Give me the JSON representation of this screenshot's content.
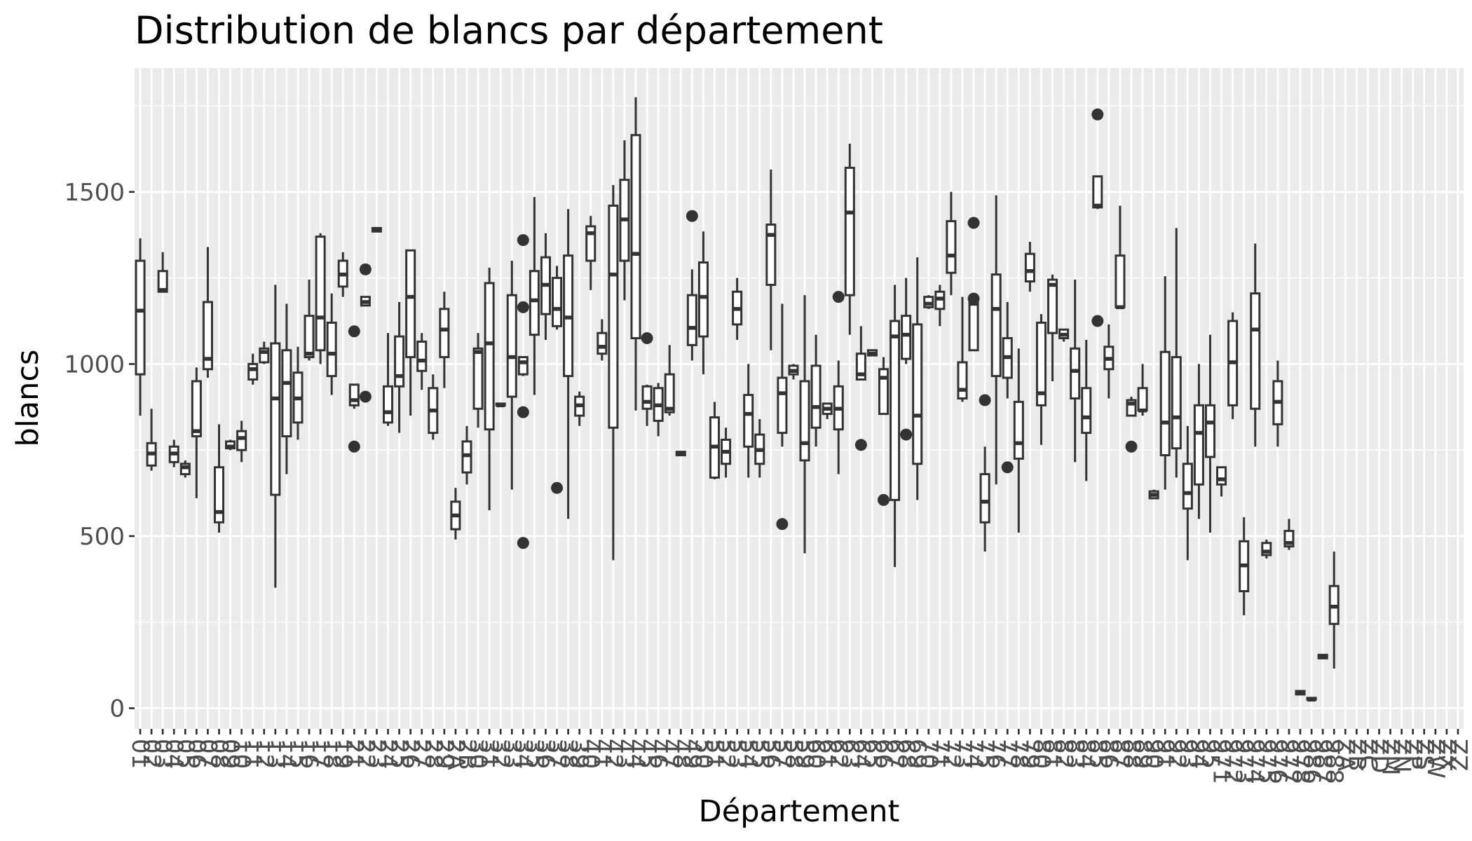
{
  "chart_data": {
    "type": "boxplot",
    "title": "Distribution de blancs par département",
    "xlabel": "Département",
    "ylabel": "blancs",
    "ylim": [
      -60,
      1860
    ],
    "y_ticks": [
      0,
      500,
      1000,
      1500
    ],
    "grid": true,
    "legend": "none",
    "colors": {
      "panel": "#ebebeb",
      "grid": "#ffffff",
      "box_fill": "#ffffff",
      "stroke": "#333333"
    },
    "categories": [
      "01",
      "02",
      "03",
      "04",
      "05",
      "06",
      "07",
      "08",
      "09",
      "10",
      "11",
      "12",
      "13",
      "14",
      "15",
      "16",
      "17",
      "18",
      "19",
      "21",
      "22",
      "23",
      "24",
      "25",
      "26",
      "27",
      "28",
      "29",
      "2A",
      "2B",
      "30",
      "31",
      "32",
      "33",
      "34",
      "35",
      "36",
      "37",
      "38",
      "39",
      "40",
      "41",
      "42",
      "43",
      "44",
      "45",
      "46",
      "47",
      "48",
      "49",
      "50",
      "51",
      "52",
      "53",
      "54",
      "55",
      "56",
      "57",
      "58",
      "59",
      "60",
      "61",
      "62",
      "63",
      "64",
      "65",
      "66",
      "67",
      "68",
      "69",
      "70",
      "71",
      "72",
      "73",
      "74",
      "75",
      "76",
      "77",
      "78",
      "79",
      "80",
      "81",
      "82",
      "83",
      "84",
      "85",
      "86",
      "87",
      "88",
      "89",
      "90",
      "91",
      "92",
      "93",
      "94",
      "95",
      "971",
      "972",
      "973",
      "974",
      "975",
      "976",
      "977",
      "978",
      "986",
      "987",
      "988",
      "ZA",
      "ZB",
      "ZC",
      "ZD",
      "ZM",
      "ZN",
      "ZP",
      "ZS",
      "ZW",
      "ZX",
      "ZZ"
    ],
    "boxes": [
      {
        "cat": "01",
        "min": 850,
        "q1": 970,
        "median": 1155,
        "q3": 1300,
        "max": 1365,
        "outliers": []
      },
      {
        "cat": "02",
        "min": 690,
        "q1": 705,
        "median": 740,
        "q3": 770,
        "max": 870,
        "outliers": []
      },
      {
        "cat": "03",
        "min": 1210,
        "q1": 1210,
        "median": 1215,
        "q3": 1270,
        "max": 1325,
        "outliers": []
      },
      {
        "cat": "04",
        "min": 700,
        "q1": 715,
        "median": 740,
        "q3": 760,
        "max": 780,
        "outliers": []
      },
      {
        "cat": "05",
        "min": 670,
        "q1": 680,
        "median": 700,
        "q3": 710,
        "max": 720,
        "outliers": []
      },
      {
        "cat": "06",
        "min": 610,
        "q1": 790,
        "median": 805,
        "q3": 950,
        "max": 990,
        "outliers": []
      },
      {
        "cat": "07",
        "min": 960,
        "q1": 985,
        "median": 1015,
        "q3": 1180,
        "max": 1340,
        "outliers": []
      },
      {
        "cat": "08",
        "min": 510,
        "q1": 540,
        "median": 570,
        "q3": 700,
        "max": 825,
        "outliers": []
      },
      {
        "cat": "09",
        "min": 750,
        "q1": 755,
        "median": 760,
        "q3": 775,
        "max": 780,
        "outliers": []
      },
      {
        "cat": "10",
        "min": 715,
        "q1": 750,
        "median": 785,
        "q3": 805,
        "max": 835,
        "outliers": []
      },
      {
        "cat": "11",
        "min": 940,
        "q1": 955,
        "median": 985,
        "q3": 1000,
        "max": 1030,
        "outliers": []
      },
      {
        "cat": "12",
        "min": 1000,
        "q1": 1005,
        "median": 1035,
        "q3": 1045,
        "max": 1065,
        "outliers": []
      },
      {
        "cat": "13",
        "min": 350,
        "q1": 620,
        "median": 900,
        "q3": 1060,
        "max": 1230,
        "outliers": []
      },
      {
        "cat": "14",
        "min": 680,
        "q1": 790,
        "median": 945,
        "q3": 1040,
        "max": 1175,
        "outliers": []
      },
      {
        "cat": "15",
        "min": 780,
        "q1": 830,
        "median": 900,
        "q3": 975,
        "max": 1050,
        "outliers": []
      },
      {
        "cat": "16",
        "min": 1010,
        "q1": 1020,
        "median": 1030,
        "q3": 1140,
        "max": 1245,
        "outliers": []
      },
      {
        "cat": "17",
        "min": 1000,
        "q1": 1040,
        "median": 1135,
        "q3": 1370,
        "max": 1380,
        "outliers": []
      },
      {
        "cat": "18",
        "min": 910,
        "q1": 965,
        "median": 1030,
        "q3": 1120,
        "max": 1205,
        "outliers": []
      },
      {
        "cat": "19",
        "min": 1195,
        "q1": 1225,
        "median": 1260,
        "q3": 1300,
        "max": 1325,
        "outliers": []
      },
      {
        "cat": "21",
        "min": 870,
        "q1": 880,
        "median": 895,
        "q3": 940,
        "max": 940,
        "outliers": [
          1095,
          760
        ]
      },
      {
        "cat": "22",
        "min": 1170,
        "q1": 1170,
        "median": 1180,
        "q3": 1195,
        "max": 1195,
        "outliers": [
          1275,
          905
        ]
      },
      {
        "cat": "23",
        "min": 1385,
        "q1": 1385,
        "median": 1390,
        "q3": 1395,
        "max": 1395,
        "outliers": []
      },
      {
        "cat": "24",
        "min": 820,
        "q1": 830,
        "median": 860,
        "q3": 935,
        "max": 1090,
        "outliers": []
      },
      {
        "cat": "25",
        "min": 800,
        "q1": 935,
        "median": 965,
        "q3": 1080,
        "max": 1180,
        "outliers": []
      },
      {
        "cat": "26",
        "min": 850,
        "q1": 1020,
        "median": 1195,
        "q3": 1330,
        "max": 1330,
        "outliers": []
      },
      {
        "cat": "27",
        "min": 925,
        "q1": 980,
        "median": 1010,
        "q3": 1065,
        "max": 1090,
        "outliers": []
      },
      {
        "cat": "28",
        "min": 780,
        "q1": 800,
        "median": 865,
        "q3": 930,
        "max": 970,
        "outliers": []
      },
      {
        "cat": "29",
        "min": 930,
        "q1": 1020,
        "median": 1100,
        "q3": 1160,
        "max": 1210,
        "outliers": []
      },
      {
        "cat": "2A",
        "min": 490,
        "q1": 520,
        "median": 560,
        "q3": 600,
        "max": 640,
        "outliers": []
      },
      {
        "cat": "2B",
        "min": 650,
        "q1": 685,
        "median": 735,
        "q3": 775,
        "max": 820,
        "outliers": []
      },
      {
        "cat": "30",
        "min": 815,
        "q1": 870,
        "median": 1035,
        "q3": 1045,
        "max": 1090,
        "outliers": []
      },
      {
        "cat": "31",
        "min": 575,
        "q1": 810,
        "median": 1060,
        "q3": 1235,
        "max": 1280,
        "outliers": []
      },
      {
        "cat": "32",
        "min": 880,
        "q1": 880,
        "median": 880,
        "q3": 885,
        "max": 885,
        "outliers": []
      },
      {
        "cat": "33",
        "min": 635,
        "q1": 905,
        "median": 1020,
        "q3": 1200,
        "max": 1300,
        "outliers": []
      },
      {
        "cat": "34",
        "min": 965,
        "q1": 970,
        "median": 1005,
        "q3": 1020,
        "max": 1020,
        "outliers": [
          1360,
          1165,
          860,
          480
        ]
      },
      {
        "cat": "35",
        "min": 910,
        "q1": 1085,
        "median": 1185,
        "q3": 1270,
        "max": 1485,
        "outliers": []
      },
      {
        "cat": "36",
        "min": 1070,
        "q1": 1145,
        "median": 1230,
        "q3": 1310,
        "max": 1380,
        "outliers": []
      },
      {
        "cat": "37",
        "min": 1100,
        "q1": 1110,
        "median": 1160,
        "q3": 1250,
        "max": 1285,
        "outliers": [
          640
        ]
      },
      {
        "cat": "38",
        "min": 550,
        "q1": 965,
        "median": 1135,
        "q3": 1315,
        "max": 1450,
        "outliers": []
      },
      {
        "cat": "39",
        "min": 820,
        "q1": 850,
        "median": 880,
        "q3": 905,
        "max": 920,
        "outliers": []
      },
      {
        "cat": "40",
        "min": 1215,
        "q1": 1300,
        "median": 1380,
        "q3": 1400,
        "max": 1430,
        "outliers": []
      },
      {
        "cat": "41",
        "min": 1010,
        "q1": 1030,
        "median": 1050,
        "q3": 1090,
        "max": 1130,
        "outliers": []
      },
      {
        "cat": "42",
        "min": 430,
        "q1": 815,
        "median": 1260,
        "q3": 1460,
        "max": 1520,
        "outliers": []
      },
      {
        "cat": "43",
        "min": 1185,
        "q1": 1300,
        "median": 1420,
        "q3": 1535,
        "max": 1650,
        "outliers": []
      },
      {
        "cat": "44",
        "min": 865,
        "q1": 1075,
        "median": 1320,
        "q3": 1665,
        "max": 1775,
        "outliers": []
      },
      {
        "cat": "45",
        "min": 820,
        "q1": 870,
        "median": 890,
        "q3": 935,
        "max": 940,
        "outliers": [
          1075
        ]
      },
      {
        "cat": "46",
        "min": 790,
        "q1": 835,
        "median": 880,
        "q3": 930,
        "max": 945,
        "outliers": []
      },
      {
        "cat": "47",
        "min": 850,
        "q1": 860,
        "median": 870,
        "q3": 970,
        "max": 1055,
        "outliers": []
      },
      {
        "cat": "48",
        "min": 735,
        "q1": 735,
        "median": 740,
        "q3": 745,
        "max": 745,
        "outliers": []
      },
      {
        "cat": "49",
        "min": 1010,
        "q1": 1055,
        "median": 1105,
        "q3": 1200,
        "max": 1275,
        "outliers": [
          1430
        ]
      },
      {
        "cat": "50",
        "min": 970,
        "q1": 1080,
        "median": 1195,
        "q3": 1295,
        "max": 1385,
        "outliers": []
      },
      {
        "cat": "51",
        "min": 665,
        "q1": 670,
        "median": 760,
        "q3": 845,
        "max": 890,
        "outliers": []
      },
      {
        "cat": "52",
        "min": 670,
        "q1": 710,
        "median": 745,
        "q3": 780,
        "max": 815,
        "outliers": []
      },
      {
        "cat": "53",
        "min": 1070,
        "q1": 1115,
        "median": 1160,
        "q3": 1210,
        "max": 1250,
        "outliers": []
      },
      {
        "cat": "54",
        "min": 670,
        "q1": 760,
        "median": 855,
        "q3": 910,
        "max": 1000,
        "outliers": []
      },
      {
        "cat": "55",
        "min": 670,
        "q1": 710,
        "median": 750,
        "q3": 795,
        "max": 840,
        "outliers": []
      },
      {
        "cat": "56",
        "min": 1040,
        "q1": 1230,
        "median": 1375,
        "q3": 1405,
        "max": 1565,
        "outliers": []
      },
      {
        "cat": "57",
        "min": 760,
        "q1": 800,
        "median": 915,
        "q3": 960,
        "max": 1175,
        "outliers": [
          535
        ]
      },
      {
        "cat": "58",
        "min": 955,
        "q1": 970,
        "median": 980,
        "q3": 995,
        "max": 1000,
        "outliers": []
      },
      {
        "cat": "59",
        "min": 450,
        "q1": 720,
        "median": 770,
        "q3": 950,
        "max": 1200,
        "outliers": []
      },
      {
        "cat": "60",
        "min": 760,
        "q1": 815,
        "median": 875,
        "q3": 995,
        "max": 1085,
        "outliers": []
      },
      {
        "cat": "61",
        "min": 840,
        "q1": 855,
        "median": 870,
        "q3": 885,
        "max": 885,
        "outliers": []
      },
      {
        "cat": "62",
        "min": 680,
        "q1": 810,
        "median": 870,
        "q3": 935,
        "max": 1010,
        "outliers": [
          1195
        ]
      },
      {
        "cat": "63",
        "min": 1085,
        "q1": 1200,
        "median": 1440,
        "q3": 1570,
        "max": 1640,
        "outliers": []
      },
      {
        "cat": "64",
        "min": 955,
        "q1": 955,
        "median": 970,
        "q3": 1030,
        "max": 1110,
        "outliers": [
          765
        ]
      },
      {
        "cat": "65",
        "min": 1025,
        "q1": 1025,
        "median": 1030,
        "q3": 1040,
        "max": 1040,
        "outliers": []
      },
      {
        "cat": "66",
        "min": 855,
        "q1": 855,
        "median": 960,
        "q3": 985,
        "max": 1020,
        "outliers": [
          605
        ]
      },
      {
        "cat": "67",
        "min": 410,
        "q1": 605,
        "median": 1080,
        "q3": 1125,
        "max": 1230,
        "outliers": []
      },
      {
        "cat": "68",
        "min": 1000,
        "q1": 1015,
        "median": 1085,
        "q3": 1140,
        "max": 1250,
        "outliers": [
          795
        ]
      },
      {
        "cat": "69",
        "min": 605,
        "q1": 710,
        "median": 850,
        "q3": 1115,
        "max": 1310,
        "outliers": []
      },
      {
        "cat": "70",
        "min": 1160,
        "q1": 1165,
        "median": 1175,
        "q3": 1195,
        "max": 1200,
        "outliers": []
      },
      {
        "cat": "71",
        "min": 1110,
        "q1": 1160,
        "median": 1190,
        "q3": 1210,
        "max": 1230,
        "outliers": []
      },
      {
        "cat": "72",
        "min": 1200,
        "q1": 1265,
        "median": 1315,
        "q3": 1415,
        "max": 1500,
        "outliers": []
      },
      {
        "cat": "73",
        "min": 890,
        "q1": 900,
        "median": 925,
        "q3": 1005,
        "max": 1195,
        "outliers": []
      },
      {
        "cat": "74",
        "min": 1040,
        "q1": 1040,
        "median": 1175,
        "q3": 1180,
        "max": 1180,
        "outliers": [
          1410,
          1190
        ]
      },
      {
        "cat": "75",
        "min": 455,
        "q1": 540,
        "median": 600,
        "q3": 680,
        "max": 760,
        "outliers": [
          895
        ]
      },
      {
        "cat": "76",
        "min": 650,
        "q1": 965,
        "median": 1160,
        "q3": 1260,
        "max": 1490,
        "outliers": []
      },
      {
        "cat": "77",
        "min": 900,
        "q1": 960,
        "median": 1020,
        "q3": 1075,
        "max": 1180,
        "outliers": [
          700
        ]
      },
      {
        "cat": "78",
        "min": 510,
        "q1": 725,
        "median": 770,
        "q3": 890,
        "max": 1045,
        "outliers": []
      },
      {
        "cat": "79",
        "min": 1210,
        "q1": 1240,
        "median": 1270,
        "q3": 1320,
        "max": 1355,
        "outliers": []
      },
      {
        "cat": "80",
        "min": 765,
        "q1": 880,
        "median": 915,
        "q3": 1120,
        "max": 1145,
        "outliers": []
      },
      {
        "cat": "81",
        "min": 950,
        "q1": 1090,
        "median": 1230,
        "q3": 1245,
        "max": 1260,
        "outliers": []
      },
      {
        "cat": "82",
        "min": 1065,
        "q1": 1075,
        "median": 1085,
        "q3": 1100,
        "max": 1100,
        "outliers": []
      },
      {
        "cat": "83",
        "min": 715,
        "q1": 900,
        "median": 980,
        "q3": 1045,
        "max": 1245,
        "outliers": []
      },
      {
        "cat": "84",
        "min": 660,
        "q1": 800,
        "median": 845,
        "q3": 930,
        "max": 1070,
        "outliers": []
      },
      {
        "cat": "85",
        "min": 1450,
        "q1": 1455,
        "median": 1460,
        "q3": 1545,
        "max": 1545,
        "outliers": [
          1725,
          1125
        ]
      },
      {
        "cat": "86",
        "min": 900,
        "q1": 985,
        "median": 1015,
        "q3": 1050,
        "max": 1115,
        "outliers": []
      },
      {
        "cat": "87",
        "min": 1160,
        "q1": 1165,
        "median": 1165,
        "q3": 1315,
        "max": 1460,
        "outliers": []
      },
      {
        "cat": "88",
        "min": 850,
        "q1": 850,
        "median": 885,
        "q3": 895,
        "max": 905,
        "outliers": [
          760
        ]
      },
      {
        "cat": "89",
        "min": 850,
        "q1": 865,
        "median": 865,
        "q3": 930,
        "max": 1000,
        "outliers": []
      },
      {
        "cat": "90",
        "min": 610,
        "q1": 610,
        "median": 620,
        "q3": 630,
        "max": 635,
        "outliers": []
      },
      {
        "cat": "91",
        "min": 635,
        "q1": 735,
        "median": 830,
        "q3": 1035,
        "max": 1255,
        "outliers": []
      },
      {
        "cat": "92",
        "min": 670,
        "q1": 755,
        "median": 845,
        "q3": 1020,
        "max": 1395,
        "outliers": []
      },
      {
        "cat": "93",
        "min": 430,
        "q1": 580,
        "median": 625,
        "q3": 710,
        "max": 820,
        "outliers": []
      },
      {
        "cat": "94",
        "min": 550,
        "q1": 650,
        "median": 800,
        "q3": 880,
        "max": 1000,
        "outliers": []
      },
      {
        "cat": "95",
        "min": 510,
        "q1": 730,
        "median": 830,
        "q3": 880,
        "max": 1085,
        "outliers": []
      },
      {
        "cat": "971",
        "min": 615,
        "q1": 650,
        "median": 665,
        "q3": 700,
        "max": 700,
        "outliers": []
      },
      {
        "cat": "972",
        "min": 840,
        "q1": 880,
        "median": 1005,
        "q3": 1125,
        "max": 1150,
        "outliers": []
      },
      {
        "cat": "973",
        "min": 270,
        "q1": 340,
        "median": 415,
        "q3": 485,
        "max": 555,
        "outliers": []
      },
      {
        "cat": "974",
        "min": 760,
        "q1": 870,
        "median": 1100,
        "q3": 1205,
        "max": 1350,
        "outliers": []
      },
      {
        "cat": "975",
        "min": 435,
        "q1": 445,
        "median": 455,
        "q3": 480,
        "max": 490,
        "outliers": []
      },
      {
        "cat": "976",
        "min": 760,
        "q1": 825,
        "median": 890,
        "q3": 950,
        "max": 1010,
        "outliers": []
      },
      {
        "cat": "977",
        "min": 460,
        "q1": 470,
        "median": 480,
        "q3": 515,
        "max": 550,
        "outliers": []
      },
      {
        "cat": "978",
        "min": 40,
        "q1": 40,
        "median": 45,
        "q3": 50,
        "max": 50,
        "outliers": []
      },
      {
        "cat": "986",
        "min": 25,
        "q1": 25,
        "median": 25,
        "q3": 30,
        "max": 30,
        "outliers": []
      },
      {
        "cat": "987",
        "min": 145,
        "q1": 145,
        "median": 150,
        "q3": 155,
        "max": 155,
        "outliers": []
      },
      {
        "cat": "988",
        "min": 115,
        "q1": 245,
        "median": 295,
        "q3": 355,
        "max": 455,
        "outliers": []
      }
    ]
  }
}
